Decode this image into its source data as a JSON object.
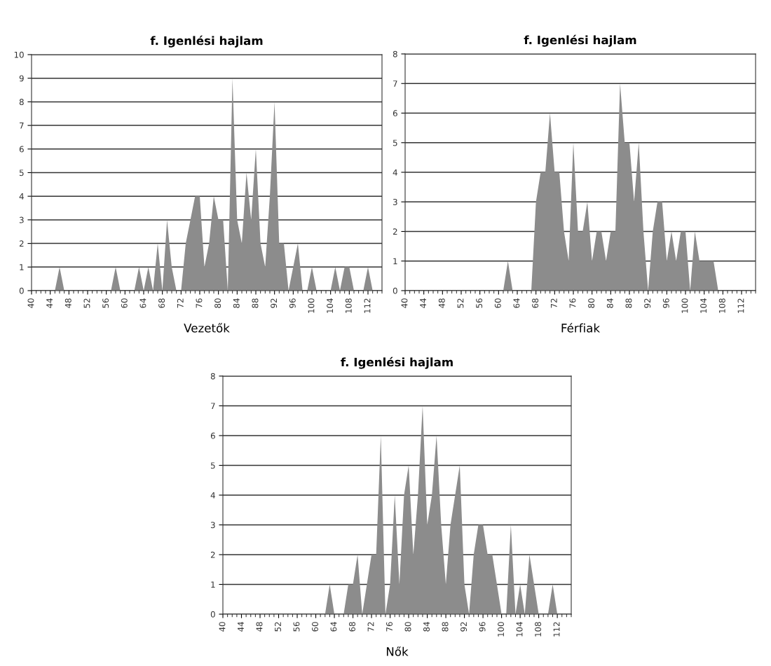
{
  "chart_data": [
    {
      "type": "area",
      "title": "f. Igenlési hajlam",
      "xlabel": "Vezetők",
      "color": "#8c8c8c",
      "grid": "y",
      "xlim": [
        40,
        115
      ],
      "xticks": [
        40,
        44,
        48,
        52,
        56,
        60,
        64,
        68,
        72,
        76,
        80,
        84,
        88,
        92,
        96,
        100,
        104,
        108,
        112
      ],
      "ylim": [
        0,
        10
      ],
      "yticks": [
        0,
        1,
        2,
        3,
        4,
        5,
        6,
        7,
        8,
        9,
        10
      ],
      "x": [
        40,
        41,
        42,
        43,
        44,
        45,
        46,
        47,
        48,
        49,
        50,
        51,
        52,
        53,
        54,
        55,
        56,
        57,
        58,
        59,
        60,
        61,
        62,
        63,
        64,
        65,
        66,
        67,
        68,
        69,
        70,
        71,
        72,
        73,
        74,
        75,
        76,
        77,
        78,
        79,
        80,
        81,
        82,
        83,
        84,
        85,
        86,
        87,
        88,
        89,
        90,
        91,
        92,
        93,
        94,
        95,
        96,
        97,
        98,
        99,
        100,
        101,
        102,
        103,
        104,
        105,
        106,
        107,
        108,
        109,
        110,
        111,
        112,
        113,
        114
      ],
      "values": [
        0,
        0,
        0,
        0,
        0,
        0,
        1,
        0,
        0,
        0,
        0,
        0,
        0,
        0,
        0,
        0,
        0,
        0,
        1,
        0,
        0,
        0,
        0,
        1,
        0,
        1,
        0,
        2,
        0,
        3,
        1,
        0,
        0,
        2,
        3,
        4,
        4,
        1,
        2,
        4,
        3,
        3,
        0,
        9,
        3,
        2,
        5,
        3,
        6,
        2,
        1,
        4,
        8,
        2,
        2,
        0,
        1,
        2,
        0,
        0,
        1,
        0,
        0,
        0,
        0,
        1,
        0,
        1,
        1,
        0,
        0,
        0,
        1,
        0,
        0
      ]
    },
    {
      "type": "area",
      "title": "f. Igenlési hajlam",
      "xlabel": "Férfiak",
      "color": "#8c8c8c",
      "grid": "y",
      "xlim": [
        40,
        115
      ],
      "xticks": [
        40,
        44,
        48,
        52,
        56,
        60,
        64,
        68,
        72,
        76,
        80,
        84,
        88,
        92,
        96,
        100,
        104,
        108,
        112
      ],
      "ylim": [
        0,
        8
      ],
      "yticks": [
        0,
        1,
        2,
        3,
        4,
        5,
        6,
        7,
        8
      ],
      "x": [
        40,
        41,
        42,
        43,
        44,
        45,
        46,
        47,
        48,
        49,
        50,
        51,
        52,
        53,
        54,
        55,
        56,
        57,
        58,
        59,
        60,
        61,
        62,
        63,
        64,
        65,
        66,
        67,
        68,
        69,
        70,
        71,
        72,
        73,
        74,
        75,
        76,
        77,
        78,
        79,
        80,
        81,
        82,
        83,
        84,
        85,
        86,
        87,
        88,
        89,
        90,
        91,
        92,
        93,
        94,
        95,
        96,
        97,
        98,
        99,
        100,
        101,
        102,
        103,
        104,
        105,
        106,
        107,
        108,
        109,
        110,
        111,
        112,
        113,
        114
      ],
      "values": [
        0,
        0,
        0,
        0,
        0,
        0,
        0,
        0,
        0,
        0,
        0,
        0,
        0,
        0,
        0,
        0,
        0,
        0,
        0,
        0,
        0,
        0,
        1,
        0,
        0,
        0,
        0,
        0,
        3,
        4,
        4,
        6,
        4,
        4,
        2,
        1,
        5,
        2,
        2,
        3,
        1,
        2,
        2,
        1,
        2,
        2,
        7,
        5,
        5,
        3,
        5,
        2,
        0,
        2,
        3,
        3,
        1,
        2,
        1,
        2,
        2,
        0,
        2,
        1,
        1,
        1,
        1,
        0,
        0,
        0,
        0,
        0,
        0,
        0,
        0
      ]
    },
    {
      "type": "area",
      "title": "f. Igenlési hajlam",
      "xlabel": "Nők",
      "color": "#8c8c8c",
      "grid": "y",
      "xlim": [
        40,
        115
      ],
      "xticks": [
        40,
        44,
        48,
        52,
        56,
        60,
        64,
        68,
        72,
        76,
        80,
        84,
        88,
        92,
        96,
        100,
        104,
        108,
        112
      ],
      "ylim": [
        0,
        8
      ],
      "yticks": [
        0,
        1,
        2,
        3,
        4,
        5,
        6,
        7,
        8
      ],
      "x": [
        40,
        41,
        42,
        43,
        44,
        45,
        46,
        47,
        48,
        49,
        50,
        51,
        52,
        53,
        54,
        55,
        56,
        57,
        58,
        59,
        60,
        61,
        62,
        63,
        64,
        65,
        66,
        67,
        68,
        69,
        70,
        71,
        72,
        73,
        74,
        75,
        76,
        77,
        78,
        79,
        80,
        81,
        82,
        83,
        84,
        85,
        86,
        87,
        88,
        89,
        90,
        91,
        92,
        93,
        94,
        95,
        96,
        97,
        98,
        99,
        100,
        101,
        102,
        103,
        104,
        105,
        106,
        107,
        108,
        109,
        110,
        111,
        112,
        113,
        114
      ],
      "values": [
        0,
        0,
        0,
        0,
        0,
        0,
        0,
        0,
        0,
        0,
        0,
        0,
        0,
        0,
        0,
        0,
        0,
        0,
        0,
        0,
        0,
        0,
        0,
        1,
        0,
        0,
        0,
        1,
        1,
        2,
        0,
        1,
        2,
        2,
        6,
        0,
        1,
        4,
        1,
        4,
        5,
        2,
        4,
        7,
        3,
        4,
        6,
        3,
        1,
        3,
        4,
        5,
        1,
        0,
        2,
        3,
        3,
        2,
        2,
        1,
        0,
        0,
        3,
        0,
        1,
        0,
        2,
        1,
        0,
        0,
        0,
        1,
        0,
        0,
        0
      ]
    }
  ]
}
